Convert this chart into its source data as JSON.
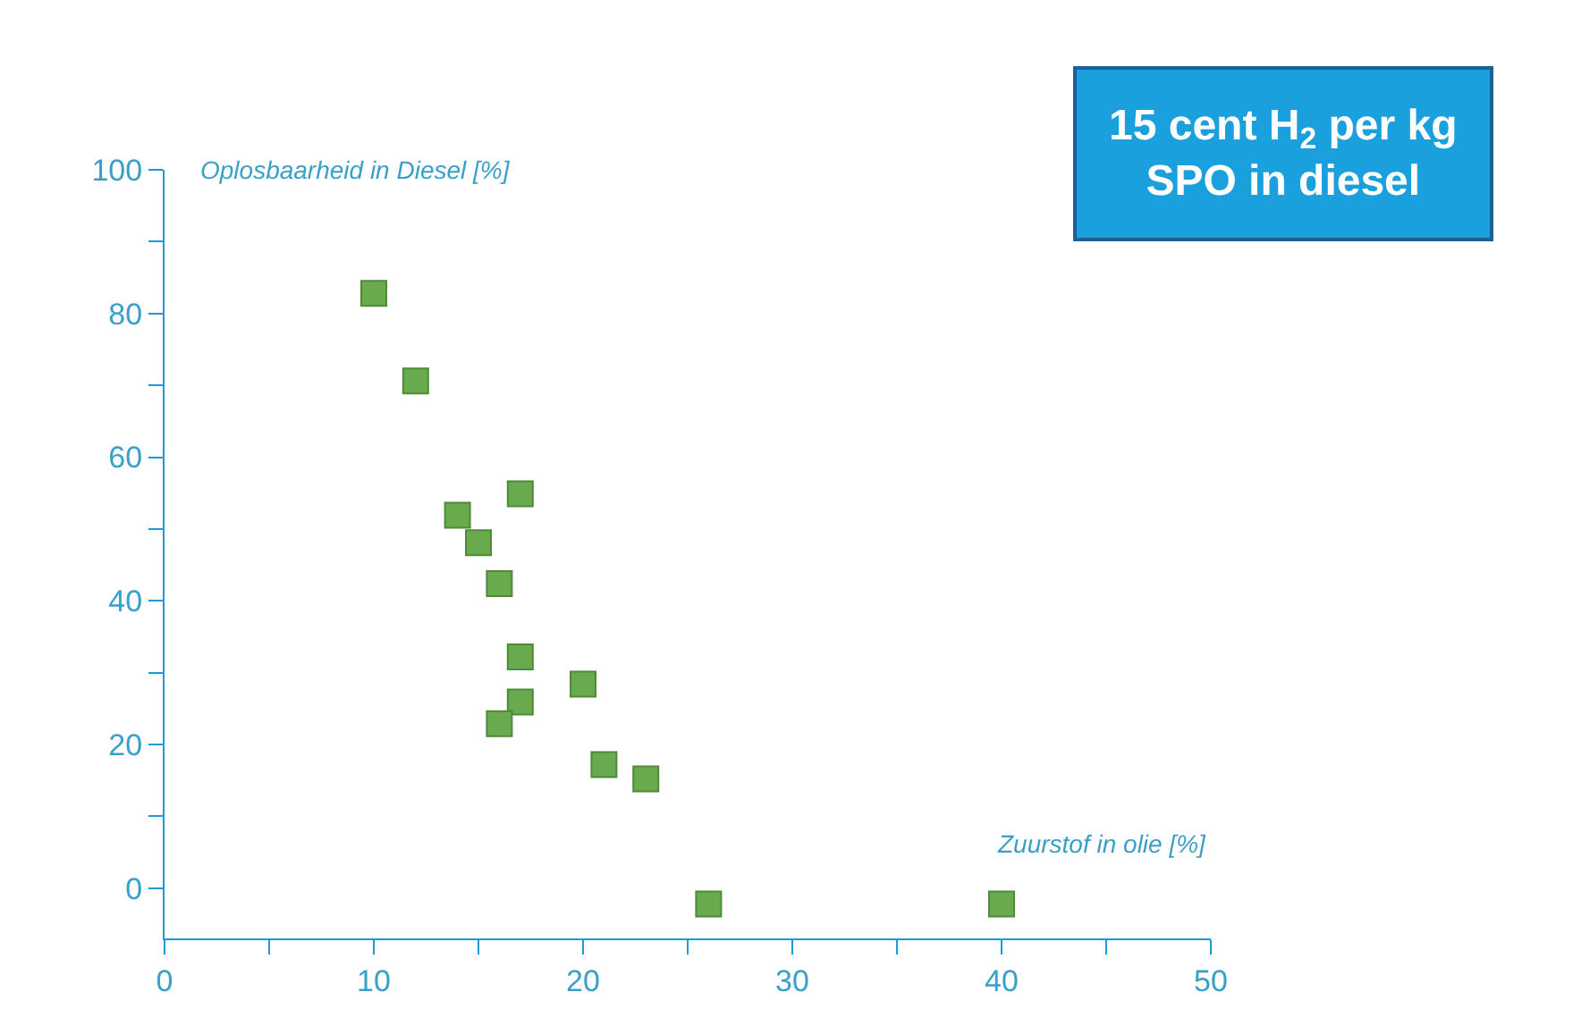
{
  "chart_data": {
    "type": "scatter",
    "xlabel": "Zuurstof in olie [%]",
    "ylabel": "Oplosbaarheid in Diesel [%]",
    "x": [
      10,
      12,
      14,
      15,
      16,
      17,
      17,
      17,
      16,
      20,
      21,
      23,
      26,
      40
    ],
    "series": [
      {
        "color": "#6aaa4f",
        "values": [
          82.8,
          70.6,
          51.9,
          48.1,
          42.4,
          54.9,
          32.2,
          25.9,
          22.9,
          28.4,
          17.2,
          15.2,
          -2.2,
          -2.2
        ]
      }
    ],
    "xlim": [
      0,
      50
    ],
    "ylim": [
      -7,
      100
    ],
    "xticks": [
      0,
      {
        "value": 5,
        "label": null
      },
      10,
      {
        "value": 15,
        "label": null
      },
      20,
      {
        "value": 25,
        "label": null
      },
      30,
      {
        "value": 35,
        "label": null
      },
      40,
      {
        "value": 45,
        "label": null
      },
      50
    ],
    "yticks": [
      0,
      {
        "value": 10,
        "label": null
      },
      20,
      {
        "value": 30,
        "label": null
      },
      40,
      {
        "value": 50,
        "label": null
      },
      60,
      {
        "value": 70,
        "label": null
      },
      80,
      {
        "value": 90,
        "label": null
      },
      100
    ],
    "marker": "square",
    "annotations": [
      "15 cent H$_{2}$ per kg\nSPO in diesel"
    ]
  }
}
